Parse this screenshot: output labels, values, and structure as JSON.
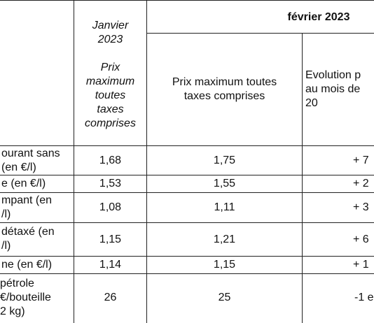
{
  "headers": {
    "jan_col": "Janvier\n2023\n\nPrix\nmaximum\ntoutes\ntaxes\ncomprises",
    "feb_group": "février 2023",
    "feb_price": "Prix maximum toutes\ntaxes comprises",
    "feb_evolution": "Evolution p\nau mois de\n20"
  },
  "rows": [
    {
      "label": "ourant sans\n(en €/l)",
      "jan": "1,68",
      "feb": "1,75",
      "evo": "+ 7"
    },
    {
      "label": "e (en €/l)",
      "jan": "1,53",
      "feb": "1,55",
      "evo": "+ 2"
    },
    {
      "label": "mpant (en\n/l)",
      "jan": "1,08",
      "feb": "1,11",
      "evo": "+ 3"
    },
    {
      "label": "détaxé (en\n/l)",
      "jan": "1,15",
      "feb": "1,21",
      "evo": "+ 6"
    },
    {
      "label": "ne (en €/l)",
      "jan": "1,14",
      "feb": "1,15",
      "evo": "+ 1"
    },
    {
      "label": " pétrole\n€/bouteille\n2 kg)",
      "jan": "26",
      "feb": "25",
      "evo": "-1 e"
    }
  ]
}
